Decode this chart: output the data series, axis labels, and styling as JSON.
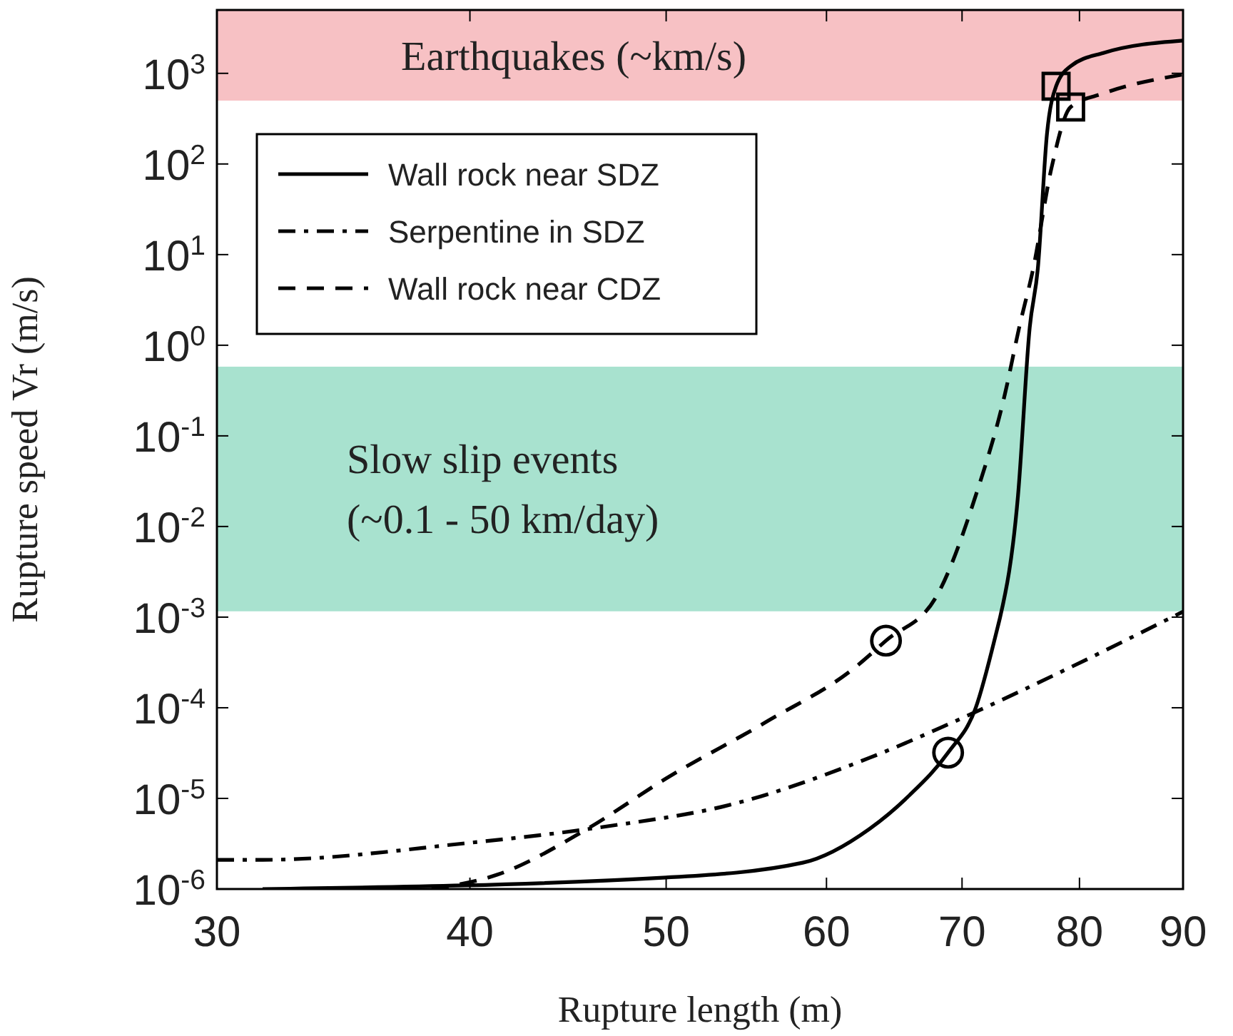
{
  "chart_data": {
    "type": "line",
    "xlabel": "Rupture length (m)",
    "ylabel": "Rupture speed Vr (m/s)",
    "log": "xy",
    "xlim": [
      30,
      90
    ],
    "xticks": [
      30,
      40,
      50,
      60,
      70,
      80,
      90
    ],
    "ylim": [
      1e-06,
      5000
    ],
    "yticks": [
      {
        "value": 1e-06,
        "label": "10$^{-6}$"
      },
      {
        "value": 1e-05,
        "label": "10$^{-5}$"
      },
      {
        "value": 0.0001,
        "label": "10$^{-4}$"
      },
      {
        "value": 0.001,
        "label": "10$^{-3}$"
      },
      {
        "value": 0.01,
        "label": "10$^{-2}$"
      },
      {
        "value": 0.1,
        "label": "10$^{-1}$"
      },
      {
        "value": 1,
        "label": "10$^{0}$"
      },
      {
        "value": 10,
        "label": "10$^{1}$"
      },
      {
        "value": 100,
        "label": "10$^{2}$"
      },
      {
        "value": 1000,
        "label": "10$^{3}$"
      }
    ],
    "grid": false,
    "legend": "top left",
    "bands": [
      {
        "axis": "y",
        "from": 500,
        "to": 5000,
        "label": "Earthquakes (~km/s)",
        "color": "#f7c1c4"
      },
      {
        "axis": "y",
        "from": 0.00116,
        "to": 0.58,
        "label": "Slow slip events\n(~0.1 - 50 km/day)",
        "color": "#a8e2cf"
      }
    ],
    "series": [
      {
        "name": "Wall rock near SDZ",
        "color": "#000000",
        "line_style": "solid",
        "x": [
          31.6,
          50,
          58.4,
          63,
          65.9,
          68.9,
          71.1,
          72.9,
          73.1,
          74.6,
          75.6,
          76.3,
          77.1,
          77.9,
          79.2,
          82.2,
          90
        ],
        "values": [
          1e-06,
          1.34e-06,
          1.95e-06,
          4.6e-06,
          1.07e-05,
          3.2e-05,
          0.0001,
          0.00078,
          0.001,
          0.022,
          1.57,
          7,
          216,
          720,
          1200,
          1680,
          2300
        ]
      },
      {
        "name": "Serpentine in SDZ",
        "color": "#000000",
        "line_style": "dashdot",
        "x": [
          30,
          31.6,
          39.8,
          46.4,
          54,
          63,
          70.7,
          79.2,
          90
        ],
        "values": [
          2.1e-06,
          2.1e-06,
          3.2e-06,
          4.8e-06,
          8.7e-06,
          2.8e-05,
          8.5e-05,
          0.00028,
          0.00115
        ]
      },
      {
        "name": "Wall rock near CDZ",
        "color": "#000000",
        "line_style": "dashed",
        "x": [
          38.3,
          41.3,
          45.7,
          50,
          56.1,
          62,
          64.2,
          68,
          71.1,
          73.5,
          74.7,
          75.9,
          77.5,
          79.2,
          82.2,
          90
        ],
        "values": [
          1e-06,
          1.45e-06,
          4.6e-06,
          1.66e-05,
          7.1e-05,
          0.00028,
          0.00055,
          0.0017,
          0.022,
          0.29,
          1.57,
          7,
          91,
          425,
          600,
          970
        ]
      },
      {
        "type": "scatter",
        "color": "#000000",
        "marker": "circle",
        "x": [
          68.9,
          64.2
        ],
        "values": [
          3.2e-05,
          0.00055
        ]
      },
      {
        "type": "scatter",
        "color": "#000000",
        "marker": "square",
        "x": [
          77.9,
          79.2
        ],
        "values": [
          720,
          425
        ]
      }
    ]
  }
}
